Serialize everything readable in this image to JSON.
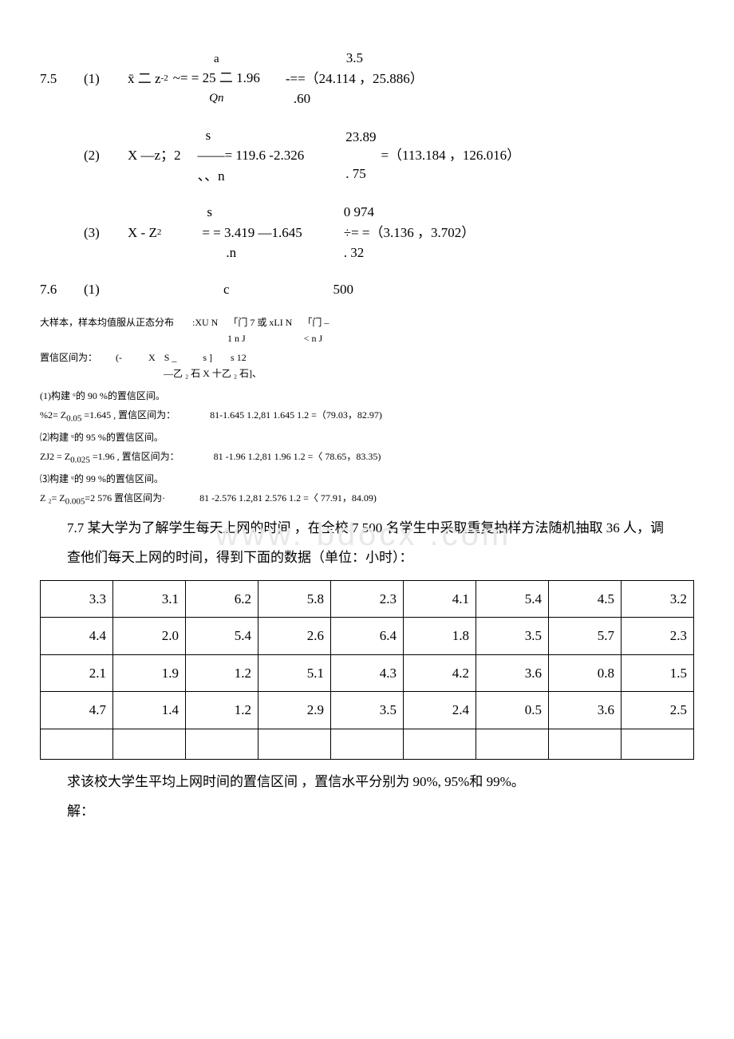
{
  "equations": {
    "eq1": {
      "label": "7.5",
      "num": "(1)",
      "lhs": "x̄ 二 z",
      "sub1": "-2",
      "mid": "~= = 25 二 1.96",
      "frac_top": "a",
      "frac_bot": "Qn",
      "frac2_top": "3.5",
      "frac2_bot": ".60",
      "result": "-==（24.114 ，25.886）"
    },
    "eq2": {
      "num": "(2)",
      "lhs": "X —z；2",
      "frac_top": "s",
      "line2": "——= 119.6 -2.326",
      "frac2_top": "23.89",
      "line3": "、、n",
      "frac2_bot": ". 75",
      "result": "=（113.184 ，126.016）"
    },
    "eq3": {
      "num": "(3)",
      "lhs": "X - Z",
      "sub": "2",
      "frac_top": "s",
      "line2": "= = 3.419 —1.645",
      "frac2_top": "0 974",
      "line3": ".n",
      "frac2_bot": ". 32",
      "result": "÷= =（3.136 ，3.702）"
    },
    "eq4": {
      "label": "7.6",
      "num": "(1)",
      "var": "c",
      "val": "500"
    }
  },
  "small_lines": {
    "l1_pre": "大样本，样本均值服从正态分布",
    "l1_mid": ":XU N",
    "l1_bracket1": "「门 7    或 xLI N",
    "l1_sub1": "1 n J",
    "l1_bracket2": "「门 –",
    "l1_sub2": "< n J",
    "l2_pre": "置信区间为：",
    "l2_mid": "(-",
    "l2_x": "X",
    "l2_s1": "S _",
    "l2_s2": "s ]",
    "l2_s3": "s 12",
    "l2_sub": "—乙 ₂ 石 X 十乙 ₂ 石]、",
    "l3": "(1)构建 ᵘ的 90 %的置信区间。",
    "l4_pre": "%2= Z",
    "l4_sub": "0.05",
    "l4_mid": " =1.645 , 置信区间为：",
    "l4_result": "81-1.645 1.2,81 1.645 1.2 =（79.03，82.97)",
    "l5": "⑵构建 ᵘ的 95 %的置信区间。",
    "l6_pre": "ZJ2 = Z",
    "l6_sub": "0.025",
    "l6_mid": " =1.96 , 置信区间为：",
    "l6_result": "81 -1.96 1.2,81 1.96 1.2 =〈 78.65，83.35)",
    "l7": "⑶构建 ᵘ的 99 %的置信区间。",
    "l8_pre": "Z ₂= Z",
    "l8_sub": "0.005",
    "l8_mid": "=2 576  置信区间为·",
    "l8_result": "81 -2.576 1.2,81 2.576 1.2 =〈 77.91，84.09)"
  },
  "problem": {
    "title": "7.7 某大学为了解学生每天上网的时间 ，在全校 7 500 名学生中采取重复抽样方法随机抽取 36 人，调",
    "subtitle": "查他们每天上网的时间，得到下面的数据（单位：小时）：",
    "question": "求该校大学生平均上网时间的置信区间 ，置信水平分别为 90%, 95%和 99%。",
    "answer_label": "解："
  },
  "table": {
    "rows": [
      [
        "3.3",
        "3.1",
        "6.2",
        "5.8",
        "2.3",
        "4.1",
        "5.4",
        "4.5",
        "3.2"
      ],
      [
        "4.4",
        "2.0",
        "5.4",
        "2.6",
        "6.4",
        "1.8",
        "3.5",
        "5.7",
        "2.3"
      ],
      [
        "2.1",
        "1.9",
        "1.2",
        "5.1",
        "4.3",
        "4.2",
        "3.6",
        "0.8",
        "1.5"
      ],
      [
        "4.7",
        "1.4",
        "1.2",
        "2.9",
        "3.5",
        "2.4",
        "0.5",
        "3.6",
        "2.5"
      ],
      [
        "",
        "",
        "",
        "",
        "",
        "",
        "",
        "",
        ""
      ]
    ]
  },
  "watermark": "www. bdocx .com",
  "colors": {
    "text": "#000000",
    "background": "#ffffff",
    "watermark": "#e8e8e8",
    "border": "#000000"
  }
}
